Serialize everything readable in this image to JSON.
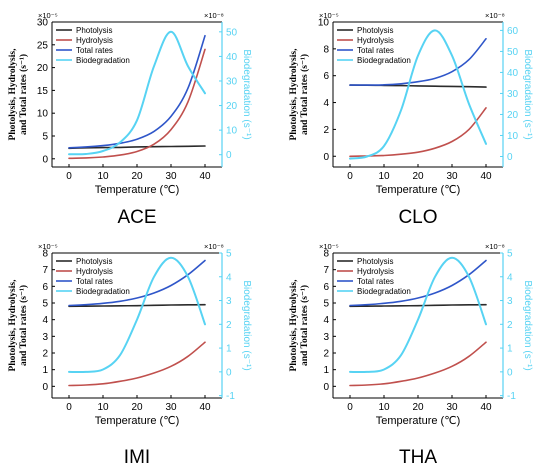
{
  "colors": {
    "photolysis": "#2b2b2b",
    "hydrolysis": "#c0504d",
    "total_rates": "#2f56c9",
    "biodegradation": "#57d3f3",
    "right_axis": "#57d3f3"
  },
  "chart_data": [
    {
      "type": "line",
      "panel_label": "ACE",
      "xlabel": "Temperature (℃)",
      "ylabel_line1": "Photolysis, Hydrolysis,",
      "ylabel_line2": "and Total rates (s⁻¹)",
      "y2label": "Biodegradation (s⁻¹)",
      "left_multiplier": "×10⁻⁵",
      "right_multiplier": "×10⁻⁸",
      "xlim": [
        -5,
        45
      ],
      "xticks": [
        0,
        10,
        20,
        30,
        40
      ],
      "ylim": [
        -1.8,
        30
      ],
      "yticks": [
        0,
        5,
        10,
        15,
        20,
        25,
        30
      ],
      "y2lim": [
        -5,
        54
      ],
      "y2ticks": [
        0,
        10,
        20,
        30,
        40,
        50
      ],
      "legend": [
        "Photolysis",
        "Hydrolysis",
        "Total rates",
        "Biodegradation"
      ],
      "x": [
        0,
        5,
        10,
        15,
        20,
        25,
        30,
        35,
        40
      ],
      "series": [
        {
          "name": "Photolysis",
          "axis": "left",
          "color_key": "photolysis",
          "values": [
            2.3,
            2.4,
            2.45,
            2.5,
            2.6,
            2.65,
            2.7,
            2.75,
            2.8
          ]
        },
        {
          "name": "Hydrolysis",
          "axis": "left",
          "color_key": "hydrolysis",
          "values": [
            0.1,
            0.2,
            0.4,
            0.8,
            1.6,
            3.2,
            6.4,
            12.5,
            24.0
          ]
        },
        {
          "name": "Total rates",
          "axis": "left",
          "color_key": "total_rates",
          "values": [
            2.4,
            2.6,
            2.9,
            3.4,
            4.3,
            6.0,
            9.3,
            15.5,
            27.0
          ]
        },
        {
          "name": "Biodegradation",
          "axis": "right",
          "color_key": "biodegradation",
          "values": [
            0.2,
            0.3,
            1.5,
            5.0,
            14.0,
            36.0,
            50.0,
            36.0,
            25.0
          ]
        }
      ]
    },
    {
      "type": "line",
      "panel_label": "CLO",
      "xlabel": "Temperature (℃)",
      "ylabel_line1": "Photolysis, Hydrolysis,",
      "ylabel_line2": "and Total rates (s⁻¹)",
      "y2label": "Biodegradation (s⁻¹)",
      "left_multiplier": "×10⁻⁵",
      "right_multiplier": "×10⁻⁸",
      "xlim": [
        -5,
        45
      ],
      "xticks": [
        0,
        10,
        20,
        30,
        40
      ],
      "ylim": [
        -0.8,
        10
      ],
      "yticks": [
        0,
        2,
        4,
        6,
        8,
        10
      ],
      "y2lim": [
        -5,
        64
      ],
      "y2ticks": [
        0,
        10,
        20,
        30,
        40,
        50,
        60
      ],
      "legend": [
        "Photolysis",
        "Hydrolysis",
        "Total rates",
        "Biodegradation"
      ],
      "x": [
        0,
        5,
        10,
        15,
        20,
        25,
        30,
        35,
        40
      ],
      "series": [
        {
          "name": "Photolysis",
          "axis": "left",
          "color_key": "photolysis",
          "values": [
            5.3,
            5.29,
            5.28,
            5.26,
            5.24,
            5.22,
            5.2,
            5.18,
            5.15
          ]
        },
        {
          "name": "Hydrolysis",
          "axis": "left",
          "color_key": "hydrolysis",
          "values": [
            0.0,
            0.02,
            0.06,
            0.15,
            0.3,
            0.6,
            1.1,
            2.0,
            3.6
          ]
        },
        {
          "name": "Total rates",
          "axis": "left",
          "color_key": "total_rates",
          "values": [
            5.3,
            5.3,
            5.32,
            5.4,
            5.55,
            5.8,
            6.3,
            7.2,
            8.75
          ]
        },
        {
          "name": "Biodegradation",
          "axis": "right",
          "color_key": "biodegradation",
          "values": [
            -1.0,
            0.0,
            5.0,
            22.0,
            48.0,
            60.0,
            48.0,
            25.0,
            6.0
          ]
        }
      ]
    },
    {
      "type": "line",
      "panel_label": "IMI",
      "xlabel": "Temperature (℃)",
      "ylabel_line1": "Photolysis, Hydrolysis,",
      "ylabel_line2": "and Total rates (s⁻¹)",
      "y2label": "Biodegradation (s⁻¹)",
      "left_multiplier": "×10⁻⁵",
      "right_multiplier": "×10⁻⁸",
      "xlim": [
        -5,
        45
      ],
      "xticks": [
        0,
        10,
        20,
        30,
        40
      ],
      "ylim": [
        -0.7,
        8
      ],
      "yticks": [
        0,
        1,
        2,
        3,
        4,
        5,
        6,
        7,
        8
      ],
      "y2lim": [
        -1.1,
        5
      ],
      "y2ticks": [
        -1,
        0,
        1,
        2,
        3,
        4,
        5
      ],
      "legend": [
        "Photolysis",
        "Hydrolysis",
        "Total rates",
        "Biodegradation"
      ],
      "x": [
        0,
        5,
        10,
        15,
        20,
        25,
        30,
        35,
        40
      ],
      "series": [
        {
          "name": "Photolysis",
          "axis": "left",
          "color_key": "photolysis",
          "values": [
            4.8,
            4.81,
            4.82,
            4.83,
            4.84,
            4.86,
            4.88,
            4.89,
            4.9
          ]
        },
        {
          "name": "Hydrolysis",
          "axis": "left",
          "color_key": "hydrolysis",
          "values": [
            0.05,
            0.08,
            0.15,
            0.3,
            0.5,
            0.8,
            1.2,
            1.8,
            2.65
          ]
        },
        {
          "name": "Total rates",
          "axis": "left",
          "color_key": "total_rates",
          "values": [
            4.85,
            4.9,
            4.98,
            5.1,
            5.3,
            5.6,
            6.05,
            6.7,
            7.55
          ]
        },
        {
          "name": "Biodegradation",
          "axis": "right",
          "color_key": "biodegradation",
          "values": [
            0.0,
            0.0,
            0.1,
            0.7,
            2.2,
            4.0,
            4.8,
            4.0,
            2.0
          ]
        }
      ]
    },
    {
      "type": "line",
      "panel_label": "THA",
      "xlabel": "Temperature (℃)",
      "ylabel_line1": "Photolysis, Hydrolysis,",
      "ylabel_line2": "and Total rates (s⁻¹)",
      "y2label": "Biodegradation (s⁻¹)",
      "left_multiplier": "×10⁻⁵",
      "right_multiplier": "×10⁻⁸",
      "xlim": [
        -5,
        45
      ],
      "xticks": [
        0,
        10,
        20,
        30,
        40
      ],
      "ylim": [
        -0.7,
        8
      ],
      "yticks": [
        0,
        1,
        2,
        3,
        4,
        5,
        6,
        7,
        8
      ],
      "y2lim": [
        -1.1,
        5
      ],
      "y2ticks": [
        -1,
        0,
        1,
        2,
        3,
        4,
        5
      ],
      "legend": [
        "Photolysis",
        "Hydrolysis",
        "Total rates",
        "Biodegradation"
      ],
      "x": [
        0,
        5,
        10,
        15,
        20,
        25,
        30,
        35,
        40
      ],
      "series": [
        {
          "name": "Photolysis",
          "axis": "left",
          "color_key": "photolysis",
          "values": [
            4.8,
            4.81,
            4.82,
            4.83,
            4.84,
            4.86,
            4.88,
            4.89,
            4.9
          ]
        },
        {
          "name": "Hydrolysis",
          "axis": "left",
          "color_key": "hydrolysis",
          "values": [
            0.05,
            0.08,
            0.15,
            0.3,
            0.5,
            0.8,
            1.2,
            1.8,
            2.65
          ]
        },
        {
          "name": "Total rates",
          "axis": "left",
          "color_key": "total_rates",
          "values": [
            4.85,
            4.9,
            4.98,
            5.1,
            5.3,
            5.6,
            6.05,
            6.7,
            7.55
          ]
        },
        {
          "name": "Biodegradation",
          "axis": "right",
          "color_key": "biodegradation",
          "values": [
            0.0,
            0.0,
            0.1,
            0.7,
            2.2,
            4.0,
            4.8,
            4.0,
            2.0
          ]
        }
      ]
    }
  ]
}
